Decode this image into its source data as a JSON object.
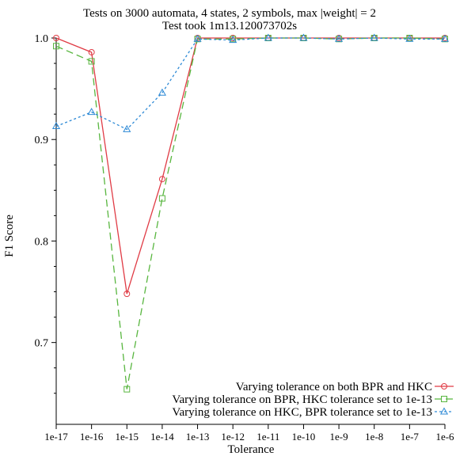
{
  "chart_data": {
    "type": "line",
    "title": "Tests on 3000 automata, 4 states, 2 symbols, max |weight| = 2",
    "subtitle": "Test took 1m13.120073702s",
    "xlabel": "Tolerance",
    "ylabel": "F1 Score",
    "x": [
      "1e-17",
      "1e-16",
      "1e-15",
      "1e-14",
      "1e-13",
      "1e-12",
      "1e-11",
      "1e-10",
      "1e-9",
      "1e-8",
      "1e-7",
      "1e-6"
    ],
    "ylim": [
      0.635,
      1.0
    ],
    "yticks": [
      0.7,
      0.8,
      0.9,
      1.0
    ],
    "ytick_labels": [
      "0.7",
      "0.8",
      "0.9",
      "1.0"
    ],
    "grid": false,
    "legend_position": "bottom-right",
    "series": [
      {
        "name": "Varying tolerance on both BPR and HKC",
        "color": "#e03b45",
        "marker": "circle",
        "dash": "solid",
        "values": [
          1.0,
          0.986,
          0.748,
          0.861,
          1.0,
          1.0,
          1.0,
          1.0,
          1.0,
          1.0,
          1.0,
          1.0
        ]
      },
      {
        "name": "Varying tolerance on BPR, HKC tolerance set to 1e-13",
        "color": "#58b63f",
        "marker": "square",
        "dash": "long",
        "values": [
          0.992,
          0.977,
          0.654,
          0.842,
          0.999,
          0.999,
          1.0,
          1.0,
          0.999,
          1.0,
          1.0,
          0.999
        ]
      },
      {
        "name": "Varying tolerance on HKC, BPR tolerance set to 1e-13",
        "color": "#2e8ad6",
        "marker": "triangle",
        "dash": "dot",
        "values": [
          0.913,
          0.927,
          0.91,
          0.946,
          0.999,
          0.998,
          1.0,
          1.0,
          0.999,
          1.0,
          0.999,
          0.999
        ]
      }
    ]
  }
}
